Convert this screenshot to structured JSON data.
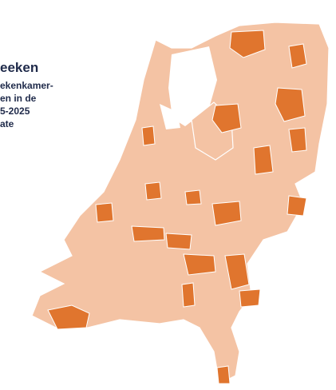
{
  "legend": {
    "title": "eeken",
    "lines": [
      "ekenkamer-",
      "en in de",
      "5-2025",
      "ate"
    ]
  }
}
